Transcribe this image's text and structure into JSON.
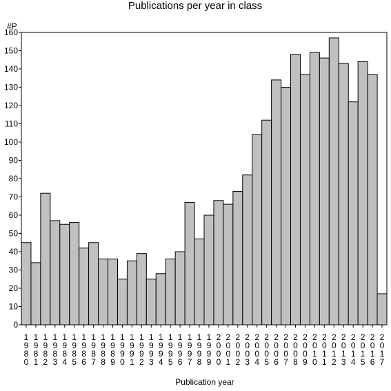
{
  "chart_data": {
    "type": "bar",
    "title": "Publications per year in class",
    "xlabel": "Publication year",
    "ylabel": "#P",
    "ylim": [
      0,
      160
    ],
    "yticks": [
      0,
      10,
      20,
      30,
      40,
      50,
      60,
      70,
      80,
      90,
      100,
      110,
      120,
      130,
      140,
      150,
      160
    ],
    "grid": false,
    "categories": [
      "1980",
      "1981",
      "1982",
      "1983",
      "1984",
      "1985",
      "1986",
      "1987",
      "1988",
      "1989",
      "1990",
      "1991",
      "1992",
      "1993",
      "1994",
      "1995",
      "1996",
      "1997",
      "1998",
      "1999",
      "2000",
      "2001",
      "2002",
      "2003",
      "2004",
      "2005",
      "2006",
      "2007",
      "2008",
      "2009",
      "2010",
      "2011",
      "2012",
      "2013",
      "2014",
      "2015",
      "2016",
      "2017"
    ],
    "values": [
      45,
      34,
      72,
      57,
      55,
      56,
      42,
      45,
      36,
      36,
      25,
      35,
      39,
      25,
      28,
      36,
      40,
      67,
      47,
      60,
      68,
      66,
      73,
      82,
      104,
      112,
      134,
      130,
      148,
      137,
      149,
      146,
      157,
      143,
      122,
      144,
      137,
      17
    ],
    "bar_color": "#c0c0c0",
    "bar_edge_color": "#000000"
  }
}
